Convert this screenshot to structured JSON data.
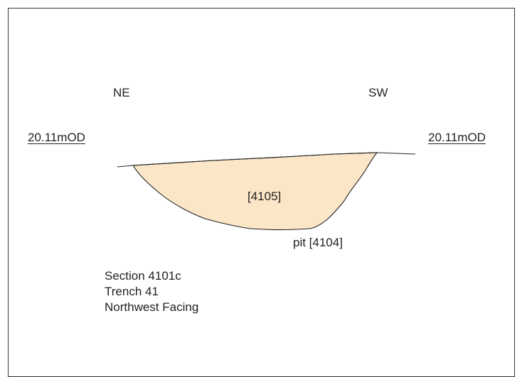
{
  "section": {
    "orientation_left": "NE",
    "orientation_right": "SW",
    "datum_left": "20.11mOD",
    "datum_right": "20.11mOD",
    "fill_label": "[4105]",
    "cut_label": "pit [4104]",
    "info": {
      "section": "Section 4101c",
      "trench": "Trench 41",
      "facing": "Northwest Facing"
    }
  },
  "colors": {
    "fill": "#fbe6c8",
    "line": "#222222"
  }
}
